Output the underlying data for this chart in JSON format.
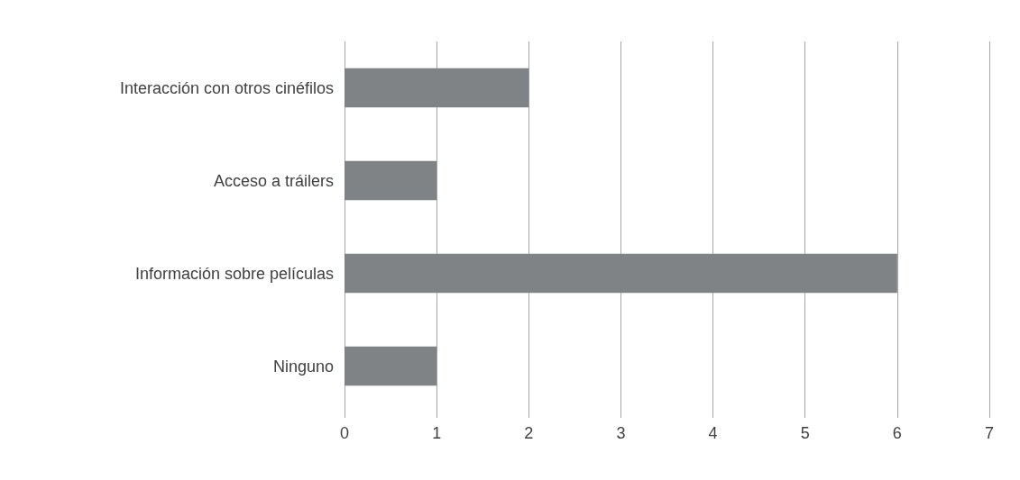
{
  "chart_data": {
    "type": "bar",
    "orientation": "horizontal",
    "categories": [
      "Interacción con otros cinéfilos",
      "Acceso a tráilers",
      "Información sobre películas",
      "Ninguno"
    ],
    "values": [
      2,
      1,
      6,
      1
    ],
    "color": "#7f8385",
    "xlim": [
      0,
      7
    ],
    "xticks": [
      0,
      1,
      2,
      3,
      4,
      5,
      6,
      7
    ],
    "grid": "x"
  }
}
